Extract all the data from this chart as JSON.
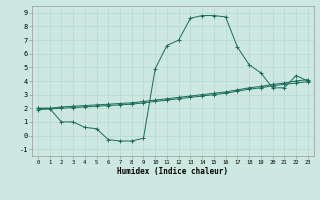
{
  "xlabel": "Humidex (Indice chaleur)",
  "bg_color": "#cce8e0",
  "grid_color": "#b8d8d0",
  "line_color": "#1a6b5a",
  "xlim": [
    -0.5,
    23.5
  ],
  "ylim": [
    -1.5,
    9.5
  ],
  "xticks": [
    0,
    1,
    2,
    3,
    4,
    5,
    6,
    7,
    8,
    9,
    10,
    11,
    12,
    13,
    14,
    15,
    16,
    17,
    18,
    19,
    20,
    21,
    22,
    23
  ],
  "yticks": [
    -1,
    0,
    1,
    2,
    3,
    4,
    5,
    6,
    7,
    8,
    9
  ],
  "line1_y": [
    2.0,
    2.0,
    2.1,
    2.15,
    2.2,
    2.25,
    2.3,
    2.35,
    2.4,
    2.5,
    2.6,
    2.7,
    2.8,
    2.9,
    3.0,
    3.1,
    3.2,
    3.35,
    3.5,
    3.6,
    3.75,
    3.85,
    4.0,
    4.1
  ],
  "line2_y": [
    1.9,
    1.95,
    2.0,
    2.05,
    2.1,
    2.15,
    2.2,
    2.25,
    2.3,
    2.4,
    2.5,
    2.6,
    2.7,
    2.8,
    2.9,
    3.0,
    3.1,
    3.25,
    3.4,
    3.5,
    3.65,
    3.75,
    3.85,
    3.95
  ],
  "line3_y": [
    2.0,
    2.0,
    1.0,
    1.0,
    0.6,
    0.5,
    -0.3,
    -0.4,
    -0.4,
    -0.2,
    4.9,
    6.6,
    7.0,
    8.6,
    8.8,
    8.8,
    8.7,
    6.5,
    5.2,
    4.6,
    3.5,
    3.5,
    4.4,
    4.0
  ]
}
